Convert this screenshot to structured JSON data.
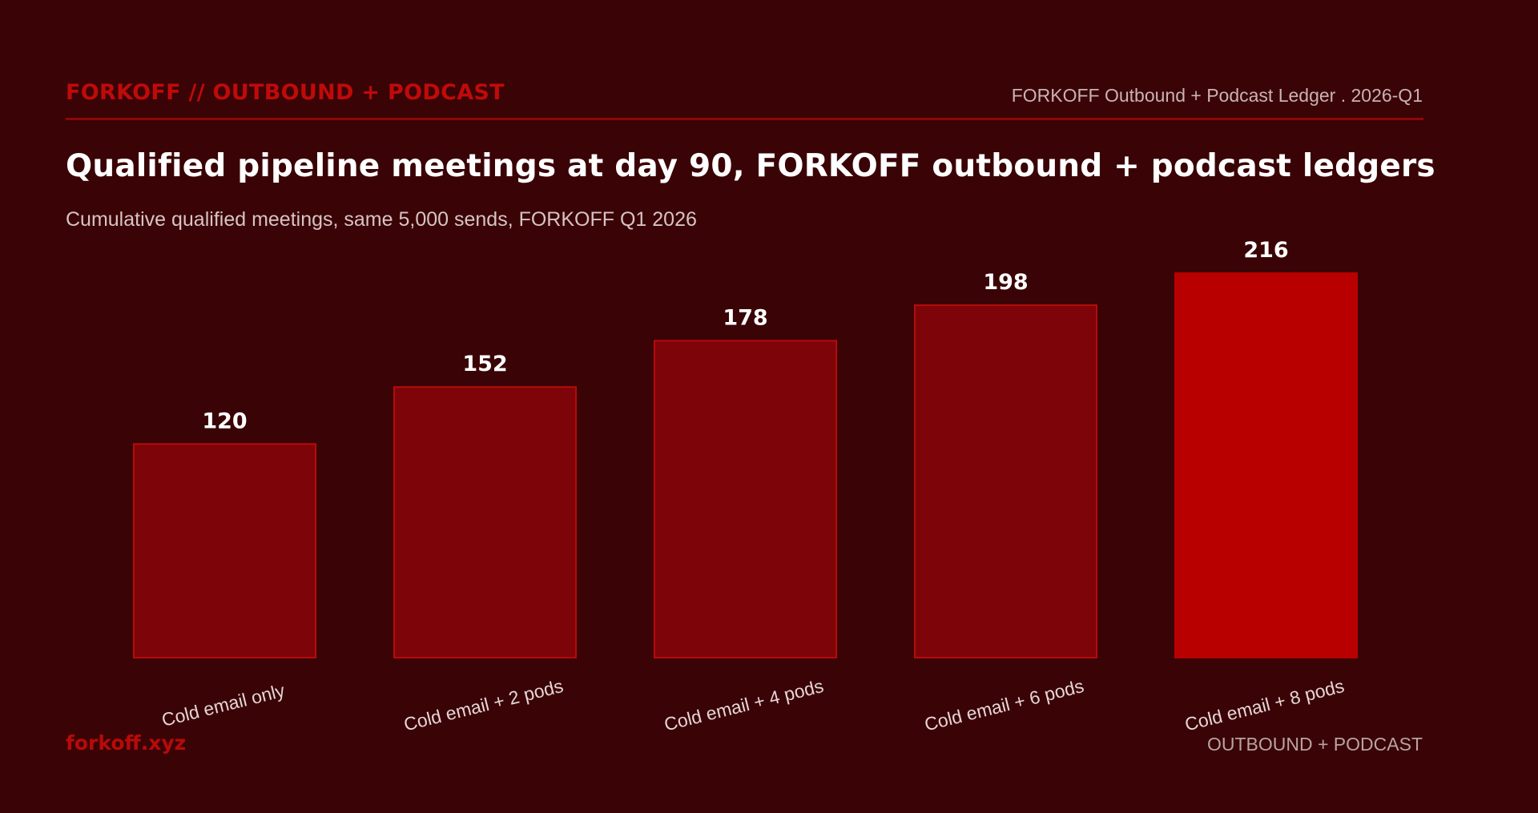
{
  "header": {
    "brand": "FORKOFF // OUTBOUND + PODCAST",
    "ledger": "FORKOFF Outbound + Podcast Ledger . 2026-Q1"
  },
  "footer": {
    "site": "forkoff.xyz",
    "tag": "OUTBOUND + PODCAST"
  },
  "colors": {
    "background": "#3a0306",
    "bar": "#7d0408",
    "bar_border": "#b80a0a",
    "highlight": "#b80000",
    "brand": "#c00a0a"
  },
  "chart_data": {
    "type": "bar",
    "title": "Qualified pipeline meetings at day 90, FORKOFF outbound + podcast ledgers",
    "subtitle": "Cumulative qualified meetings, same 5,000 sends, FORKOFF Q1 2026",
    "categories": [
      "Cold email only",
      "Cold email + 2 pods",
      "Cold email + 4 pods",
      "Cold email + 6 pods",
      "Cold email + 8 pods"
    ],
    "values": [
      120,
      152,
      178,
      198,
      216
    ],
    "value_labels": [
      "120",
      "152",
      "178",
      "198",
      "216"
    ],
    "highlight_index": 4,
    "ylim": [
      0,
      216
    ],
    "grid": false,
    "xlabel": "",
    "ylabel": ""
  }
}
